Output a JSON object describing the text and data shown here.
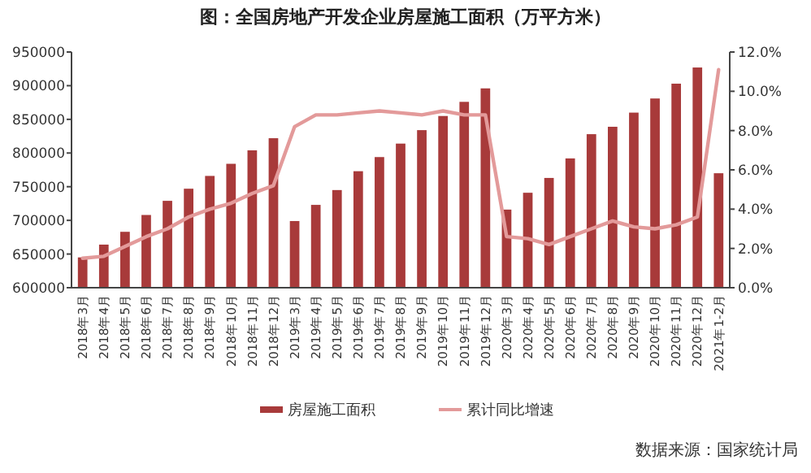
{
  "chart_data": {
    "type": "bar",
    "title": "图：全国房地产开发企业房屋施工面积（万平方米）",
    "categories": [
      "2018年3月",
      "2018年4月",
      "2018年5月",
      "2018年6月",
      "2018年7月",
      "2018年8月",
      "2018年9月",
      "2018年10月",
      "2018年11月",
      "2018年12月",
      "2019年3月",
      "2019年4月",
      "2019年5月",
      "2019年6月",
      "2019年7月",
      "2019年8月",
      "2019年9月",
      "2019年10月",
      "2019年11月",
      "2019年12月",
      "2020年3月",
      "2020年4月",
      "2020年5月",
      "2020年6月",
      "2020年7月",
      "2020年8月",
      "2020年9月",
      "2020年10月",
      "2020年11月",
      "2020年12月",
      "2021年1-2月"
    ],
    "series": [
      {
        "name": "房屋施工面积",
        "color": "#a83a3a",
        "values": [
          645000,
          664000,
          683000,
          708000,
          729000,
          747000,
          766000,
          784000,
          804000,
          822000,
          699000,
          723000,
          745000,
          773000,
          794000,
          814000,
          834000,
          855000,
          876000,
          896000,
          716000,
          741000,
          763000,
          792000,
          828000,
          839000,
          860000,
          881000,
          903000,
          927000,
          770000
        ]
      },
      {
        "name": "累计同比增速",
        "type": "line",
        "axis": "y2",
        "color": "#e39a9a",
        "values": [
          1.5,
          1.6,
          2.1,
          2.6,
          3.0,
          3.6,
          4.0,
          4.3,
          4.8,
          5.2,
          8.2,
          8.8,
          8.8,
          8.9,
          9.0,
          8.9,
          8.8,
          9.0,
          8.8,
          8.8,
          2.6,
          2.5,
          2.2,
          2.6,
          3.0,
          3.4,
          3.1,
          3.0,
          3.2,
          3.6,
          11.1
        ]
      }
    ],
    "ylim": [
      600000,
      950000
    ],
    "yticks": [
      600000,
      650000,
      700000,
      750000,
      800000,
      850000,
      900000,
      950000
    ],
    "y2lim": [
      0,
      12
    ],
    "y2ticks": [
      {
        "value": 0,
        "label": "0.0%"
      },
      {
        "value": 2,
        "label": "2.0%"
      },
      {
        "value": 4,
        "label": "4.0%"
      },
      {
        "value": 6,
        "label": "6.0%"
      },
      {
        "value": 8,
        "label": "8.0%"
      },
      {
        "value": 10,
        "label": "10.0%"
      },
      {
        "value": 12,
        "label": "12.0%"
      }
    ],
    "legend": "bottom",
    "grid": false,
    "annotations": [
      "数据来源：国家统计局"
    ]
  }
}
